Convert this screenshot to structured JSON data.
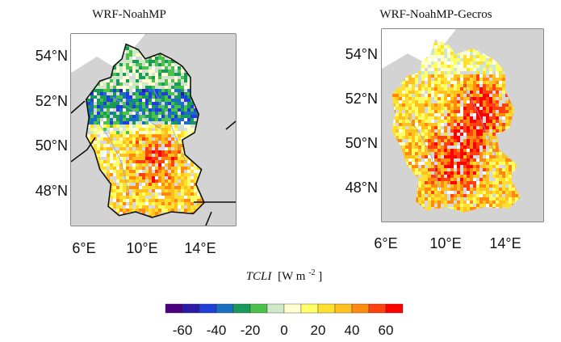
{
  "panels": [
    {
      "title": "WRF-NoahMP",
      "lat_labels": [
        "54°N",
        "52°N",
        "50°N",
        "48°N"
      ],
      "lon_labels": [
        "6°E",
        "10°E",
        "14°E"
      ],
      "pattern": "negative-north"
    },
    {
      "title": "WRF-NoahMP-Gecros",
      "lat_labels": [
        "54°N",
        "52°N",
        "50°N",
        "48°N"
      ],
      "lon_labels": [
        "6°E",
        "10°E",
        "14°E"
      ],
      "pattern": "positive"
    }
  ],
  "colorbar": {
    "title_var": "TCLI",
    "title_units": "[W m",
    "title_exp": "-2",
    "title_close": "]",
    "tick_labels": [
      "-60",
      "-40",
      "-20",
      "0",
      "20",
      "40",
      "60"
    ],
    "colors": [
      "#4b0080",
      "#2a1aa8",
      "#1f3fd8",
      "#1a6fc0",
      "#1a9a5a",
      "#4cc24c",
      "#cfe8c8",
      "#ffffd0",
      "#ffff66",
      "#ffe030",
      "#ffc020",
      "#ff8a10",
      "#ff4010",
      "#ff0000"
    ]
  },
  "colors": {
    "ocean": "#ffffff",
    "land_other": "#d3d3d3",
    "border": "#111111"
  }
}
